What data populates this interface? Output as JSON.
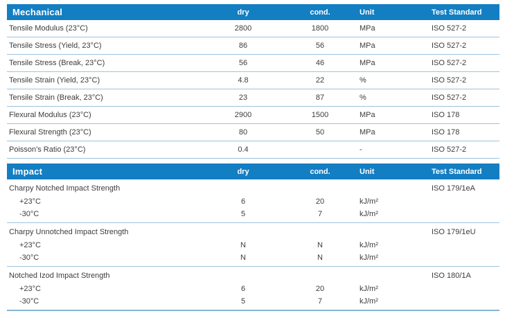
{
  "colors": {
    "header_bg": "#137ec2",
    "header_text": "#ffffff",
    "body_text": "#3c3c3c",
    "separator": "#9cc3dc",
    "table_end": "#86b4d2",
    "page_bg": "#ffffff"
  },
  "columns": {
    "dry": "dry",
    "cond": "cond.",
    "unit": "Unit",
    "standard": "Test Standard"
  },
  "sections": {
    "mechanical": {
      "title": "Mechanical",
      "rows": [
        {
          "property": "Tensile Modulus (23°C)",
          "dry": "2800",
          "cond": "1800",
          "unit": "MPa",
          "standard": "ISO 527-2"
        },
        {
          "property": "Tensile Stress (Yield, 23°C)",
          "dry": "86",
          "cond": "56",
          "unit": "MPa",
          "standard": "ISO 527-2"
        },
        {
          "property": "Tensile Stress (Break, 23°C)",
          "dry": "56",
          "cond": "46",
          "unit": "MPa",
          "standard": "ISO 527-2"
        },
        {
          "property": "Tensile Strain (Yield, 23°C)",
          "dry": "4.8",
          "cond": "22",
          "unit": "%",
          "standard": "ISO 527-2"
        },
        {
          "property": "Tensile Strain (Break, 23°C)",
          "dry": "23",
          "cond": "87",
          "unit": "%",
          "standard": "ISO 527-2"
        },
        {
          "property": "Flexural Modulus (23°C)",
          "dry": "2900",
          "cond": "1500",
          "unit": "MPa",
          "standard": "ISO 178"
        },
        {
          "property": "Flexural Strength (23°C)",
          "dry": "80",
          "cond": "50",
          "unit": "MPa",
          "standard": "ISO 178"
        },
        {
          "property": "Poisson's Ratio (23°C)",
          "dry": "0.4",
          "cond": "",
          "unit": "-",
          "standard": "ISO 527-2"
        }
      ]
    },
    "impact": {
      "title": "Impact",
      "groups": [
        {
          "property": "Charpy Notched Impact Strength",
          "standard": "ISO 179/1eA",
          "subrows": [
            {
              "label": "+23°C",
              "dry": "6",
              "cond": "20",
              "unit": "kJ/m²"
            },
            {
              "label": "-30°C",
              "dry": "5",
              "cond": "7",
              "unit": "kJ/m²"
            }
          ]
        },
        {
          "property": "Charpy Unnotched Impact Strength",
          "standard": "ISO 179/1eU",
          "subrows": [
            {
              "label": "+23°C",
              "dry": "N",
              "cond": "N",
              "unit": "kJ/m²"
            },
            {
              "label": "-30°C",
              "dry": "N",
              "cond": "N",
              "unit": "kJ/m²"
            }
          ]
        },
        {
          "property": "Notched Izod Impact Strength",
          "standard": "ISO 180/1A",
          "subrows": [
            {
              "label": "+23°C",
              "dry": "6",
              "cond": "20",
              "unit": "kJ/m²"
            },
            {
              "label": "-30°C",
              "dry": "5",
              "cond": "7",
              "unit": "kJ/m²"
            }
          ]
        }
      ]
    }
  }
}
